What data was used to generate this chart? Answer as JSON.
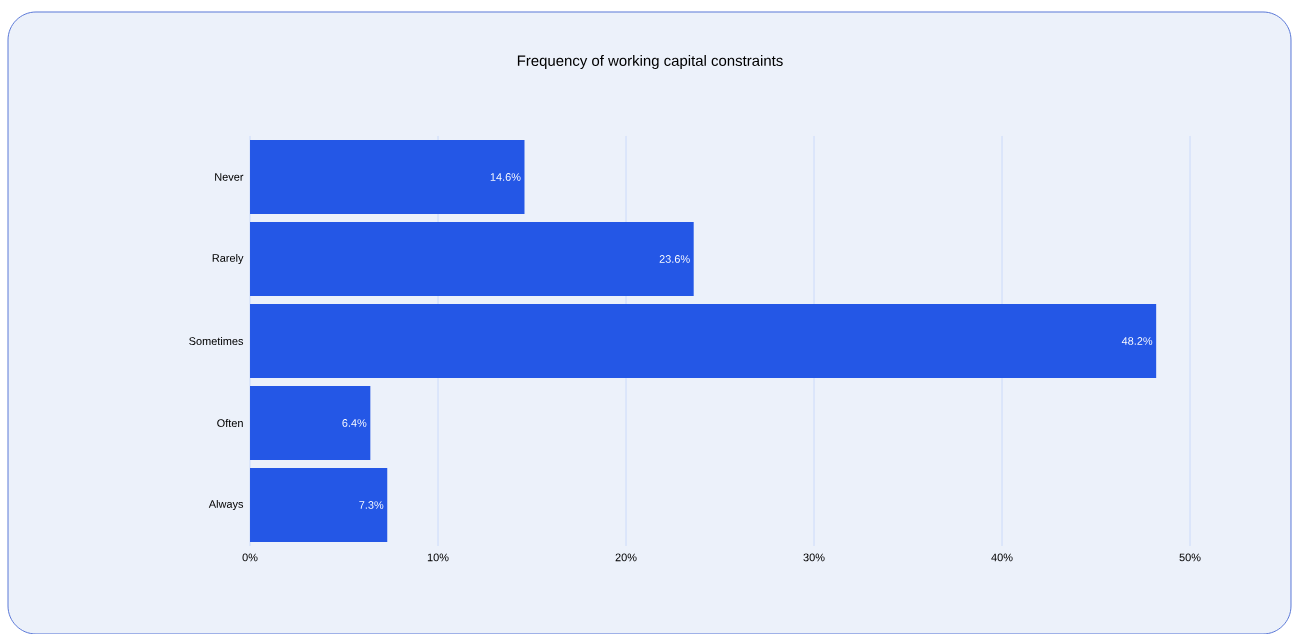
{
  "chart_data": {
    "type": "bar",
    "orientation": "horizontal",
    "title": "Frequency of working capital constraints",
    "categories": [
      "Never",
      "Rarely",
      "Sometimes",
      "Often",
      "Always"
    ],
    "values": [
      14.6,
      23.6,
      48.2,
      6.4,
      7.3
    ],
    "value_labels": [
      "14.6%",
      "23.6%",
      "48.2%",
      "6.4%",
      "7.3%"
    ],
    "color": "#2457e6",
    "xlim": [
      0,
      50
    ],
    "xticks": [
      {
        "value": 0,
        "label": "0%"
      },
      {
        "value": 10,
        "label": "10%"
      },
      {
        "value": 20,
        "label": "20%"
      },
      {
        "value": 30,
        "label": "30%"
      },
      {
        "value": 40,
        "label": "40%"
      },
      {
        "value": 50,
        "label": "50%"
      }
    ],
    "grid": "x"
  }
}
